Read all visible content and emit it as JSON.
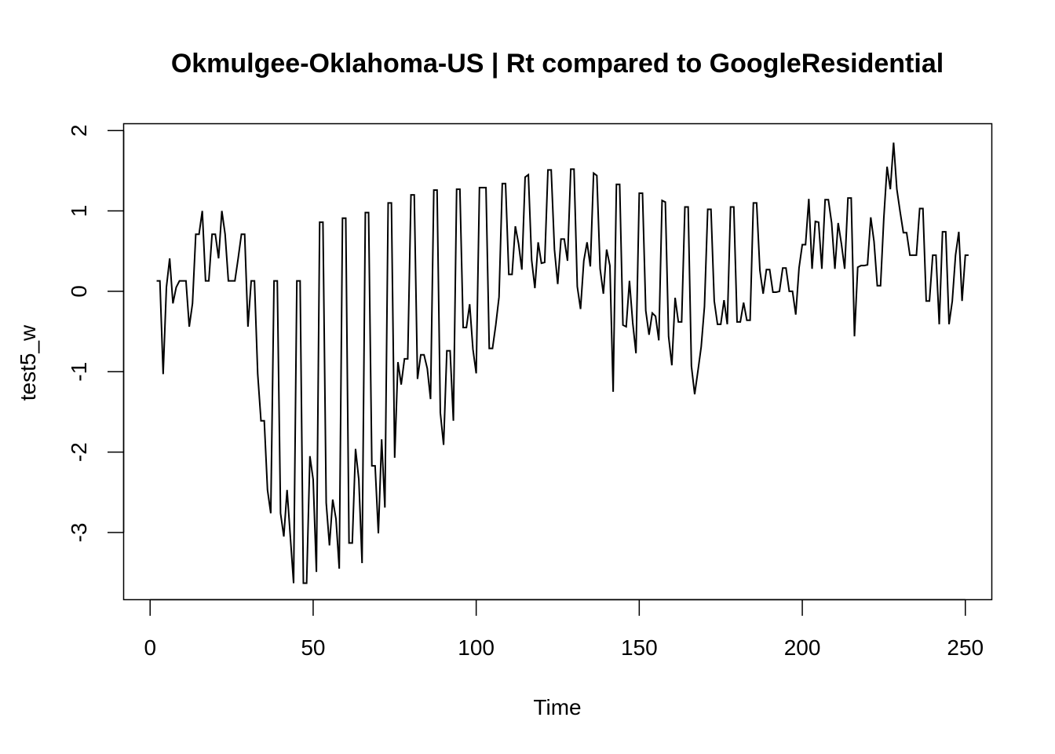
{
  "chart_data": {
    "type": "line",
    "title": "Okmulgee-Oklahoma-US | Rt compared to GoogleResidential",
    "xlabel": "Time",
    "ylabel": "test5_w",
    "xlim": [
      -8,
      258
    ],
    "ylim": [
      -3.83,
      2.08
    ],
    "x_ticks": [
      0,
      50,
      100,
      150,
      200,
      250
    ],
    "x_tick_labels": [
      "0",
      "50",
      "100",
      "150",
      "200",
      "250"
    ],
    "y_ticks": [
      -3,
      -2,
      -1,
      0,
      1,
      2
    ],
    "y_tick_labels": [
      "-3",
      "-2",
      "-1",
      "0",
      "1",
      "2"
    ],
    "grid": false,
    "legend": "none",
    "line_color": "#000000",
    "series": [
      {
        "x_start": 2,
        "values": [
          0.13,
          0.13,
          -1.03,
          0.05,
          0.41,
          -0.15,
          0.05,
          0.13,
          0.13,
          0.13,
          -0.44,
          -0.15,
          0.71,
          0.71,
          1.0,
          0.13,
          0.13,
          0.71,
          0.71,
          0.41,
          1.0,
          0.71,
          0.13,
          0.13,
          0.13,
          0.41,
          0.71,
          0.71,
          -0.44,
          0.13,
          0.13,
          -1.03,
          -1.61,
          -1.61,
          -2.47,
          -2.76,
          0.13,
          0.13,
          -2.76,
          -3.05,
          -2.47,
          -3.05,
          -3.63,
          0.13,
          0.13,
          -3.63,
          -3.63,
          -2.05,
          -2.34,
          -3.49,
          0.86,
          0.86,
          -2.63,
          -3.16,
          -2.59,
          -2.83,
          -3.45,
          0.91,
          0.91,
          -3.13,
          -3.13,
          -1.96,
          -2.34,
          -3.38,
          0.98,
          0.98,
          -2.17,
          -2.17,
          -3.01,
          -1.84,
          -2.69,
          1.1,
          1.1,
          -2.07,
          -0.88,
          -1.16,
          -0.84,
          -0.84,
          1.2,
          1.2,
          -1.09,
          -0.79,
          -0.79,
          -0.96,
          -1.34,
          1.26,
          1.26,
          -1.51,
          -1.91,
          -0.74,
          -0.74,
          -1.61,
          1.27,
          1.27,
          -0.45,
          -0.45,
          -0.16,
          -0.72,
          -1.02,
          1.29,
          1.29,
          1.29,
          -0.71,
          -0.71,
          -0.42,
          -0.07,
          1.34,
          1.34,
          0.21,
          0.21,
          0.81,
          0.59,
          0.27,
          1.42,
          1.45,
          0.39,
          0.04,
          0.61,
          0.35,
          0.36,
          1.51,
          1.51,
          0.52,
          0.09,
          0.65,
          0.65,
          0.38,
          1.52,
          1.52,
          0.06,
          -0.22,
          0.38,
          0.61,
          0.31,
          1.47,
          1.44,
          0.28,
          -0.03,
          0.52,
          0.32,
          -1.25,
          1.33,
          1.33,
          -0.42,
          -0.44,
          0.13,
          -0.39,
          -0.77,
          1.22,
          1.22,
          -0.24,
          -0.54,
          -0.27,
          -0.31,
          -0.61,
          1.13,
          1.11,
          -0.56,
          -0.92,
          -0.08,
          -0.38,
          -0.38,
          1.05,
          1.05,
          -0.93,
          -1.28,
          -0.99,
          -0.69,
          -0.19,
          1.02,
          1.02,
          -0.12,
          -0.41,
          -0.41,
          -0.11,
          -0.41,
          1.05,
          1.05,
          -0.38,
          -0.38,
          -0.14,
          -0.36,
          -0.36,
          1.1,
          1.1,
          0.26,
          -0.03,
          0.27,
          0.27,
          -0.01,
          -0.01,
          0.0,
          0.29,
          0.29,
          0.0,
          0.0,
          -0.29,
          0.29,
          0.58,
          0.58,
          1.15,
          0.28,
          0.87,
          0.86,
          0.28,
          1.14,
          1.14,
          0.85,
          0.28,
          0.85,
          0.59,
          0.28,
          1.16,
          1.16,
          -0.56,
          0.3,
          0.32,
          0.32,
          0.33,
          0.92,
          0.62,
          0.07,
          0.07,
          0.91,
          1.55,
          1.27,
          1.85,
          1.27,
          0.99,
          0.73,
          0.73,
          0.45,
          0.45,
          0.45,
          1.03,
          1.03,
          -0.12,
          -0.12,
          0.45,
          0.45,
          -0.41,
          0.74,
          0.74,
          -0.41,
          -0.12,
          0.45,
          0.74,
          -0.12,
          0.45,
          0.45
        ]
      }
    ]
  }
}
